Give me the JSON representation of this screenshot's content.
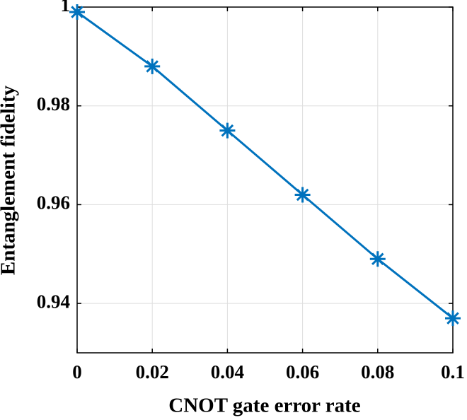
{
  "chart_data": {
    "type": "line",
    "xlabel": "CNOT gate error rate",
    "ylabel": "Entanglement fidelity",
    "x": [
      0,
      0.02,
      0.04,
      0.06,
      0.08,
      0.1
    ],
    "series": [
      {
        "color": "#0072bd",
        "values": [
          0.999,
          0.988,
          0.975,
          0.962,
          0.949,
          0.937
        ]
      }
    ],
    "xlim": [
      0,
      0.1
    ],
    "xticks": [
      0,
      0.02,
      0.04,
      0.06,
      0.08,
      0.1
    ],
    "ylim": [
      0.93,
      1
    ],
    "yticks": [
      0.94,
      0.96,
      0.98,
      1
    ],
    "grid": true
  }
}
